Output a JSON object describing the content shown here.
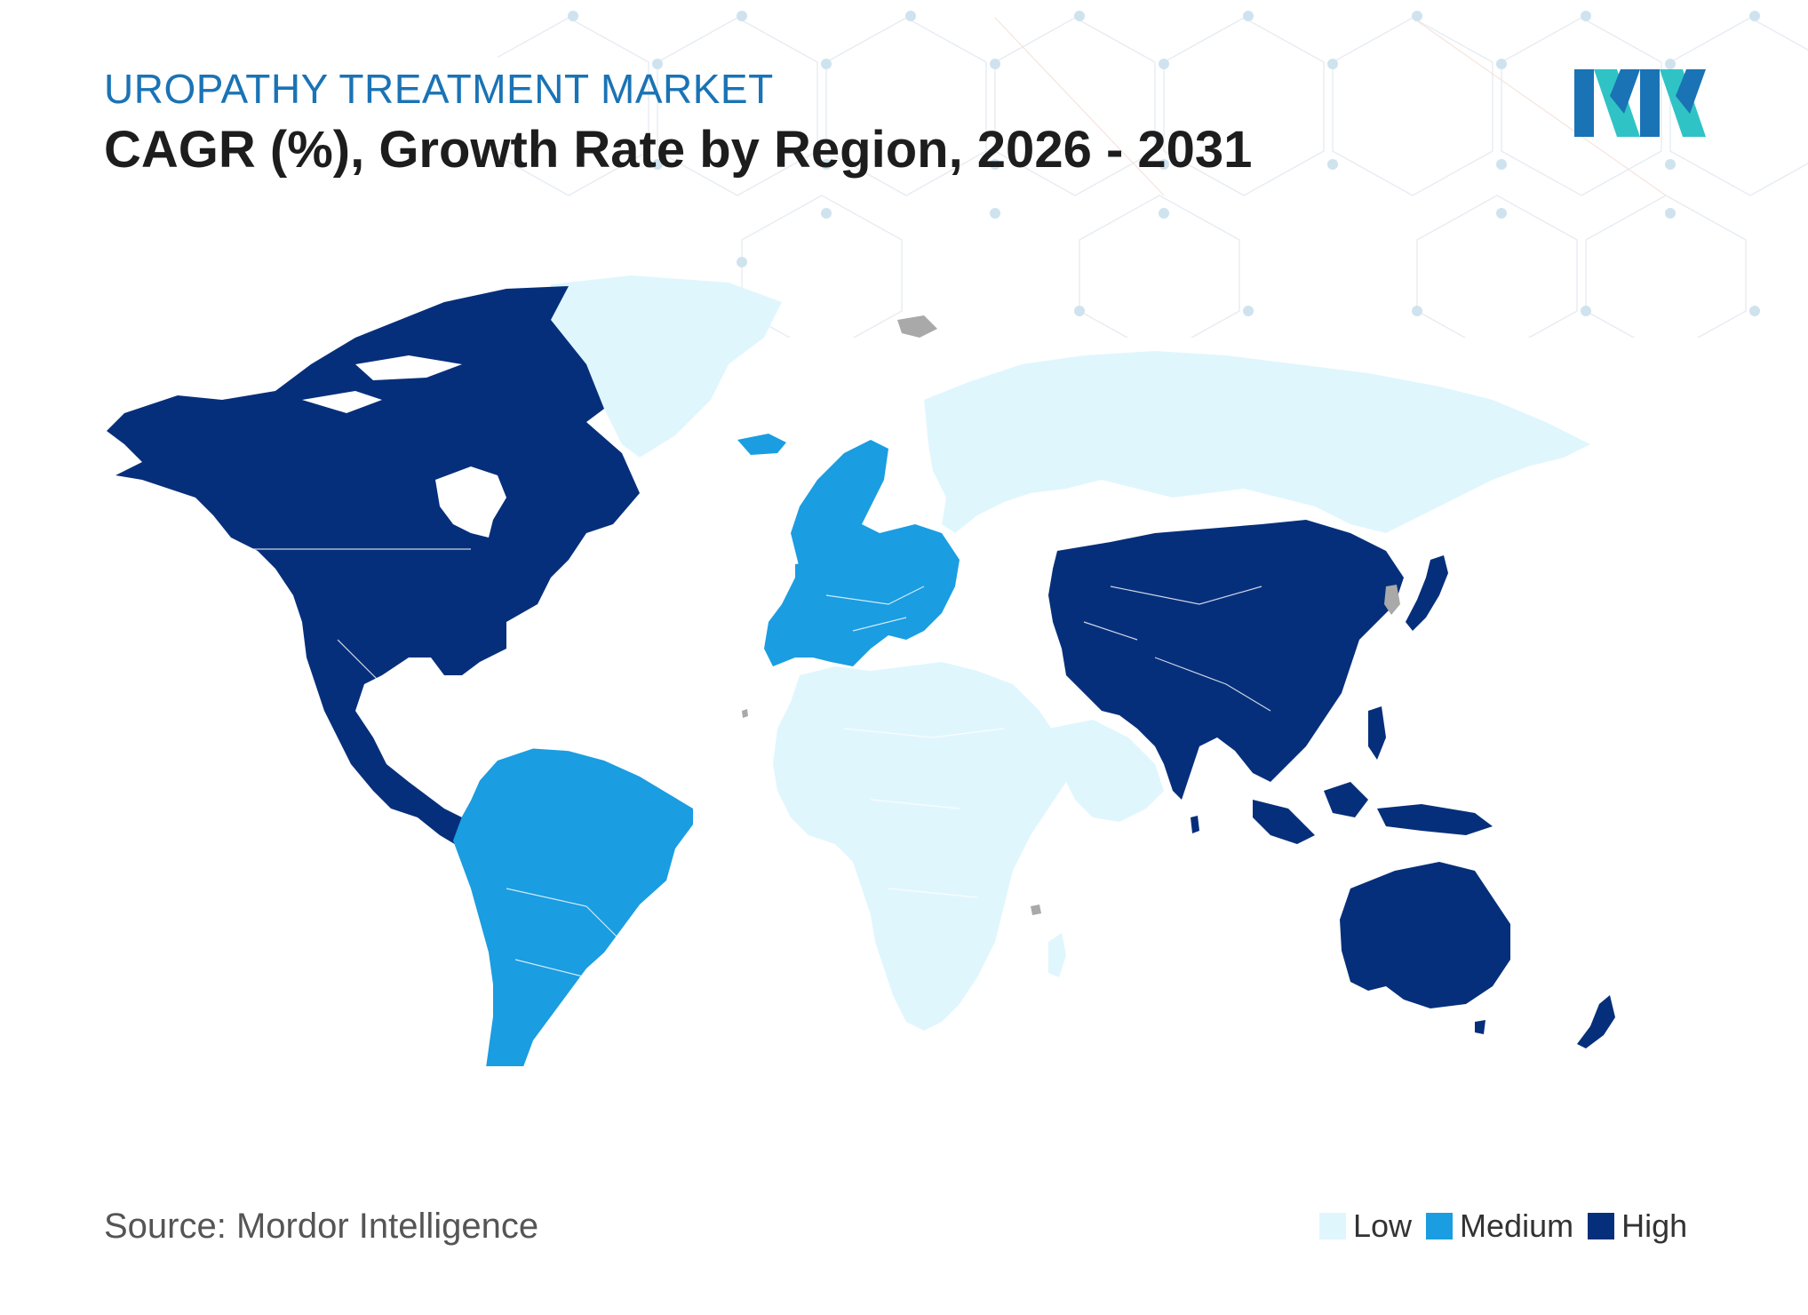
{
  "header": {
    "subtitle": "UROPATHY TREATMENT MARKET",
    "title": "CAGR (%), Growth Rate by Region, 2026 - 2031"
  },
  "footer": {
    "source": "Source: Mordor Intelligence"
  },
  "legend": [
    {
      "label": "Low",
      "color": "#e0f6fd"
    },
    {
      "label": "Medium",
      "color": "#1a9de1"
    },
    {
      "label": "High",
      "color": "#062f7b"
    }
  ],
  "map": {
    "regions": [
      {
        "name": "North America",
        "level": "High"
      },
      {
        "name": "South America",
        "level": "Medium"
      },
      {
        "name": "Europe",
        "level": "Medium"
      },
      {
        "name": "Asia-Pacific",
        "level": "High"
      },
      {
        "name": "Middle East and Africa",
        "level": "Low"
      },
      {
        "name": "Russia and Central Eurasia",
        "level": "Low"
      },
      {
        "name": "Greenland",
        "level": "Low"
      }
    ],
    "no_data_color": "#a9a9a9"
  },
  "brand": {
    "logo_icon": "mordor-intelligence-logo",
    "colors": {
      "primary": "#1a73b5",
      "accent": "#30c3c6"
    }
  }
}
